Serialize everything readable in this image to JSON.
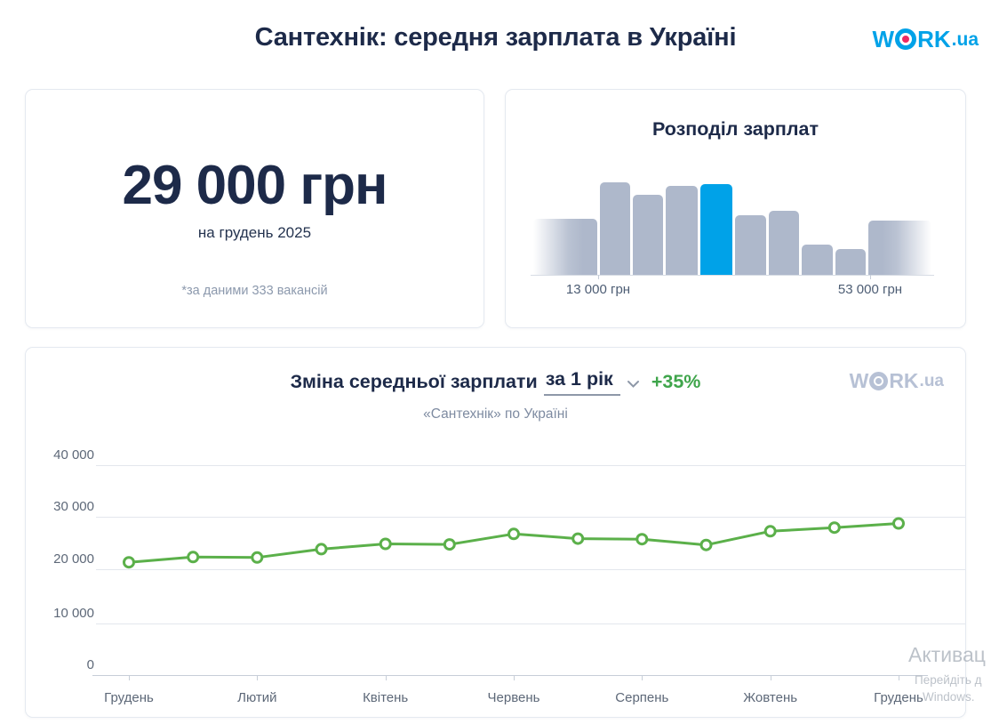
{
  "header": {
    "title": "Сантехнік: середня зарплата в Україні",
    "logo": {
      "pre_o": "W",
      "post_o": "RK",
      "suffix": ".ua"
    }
  },
  "salary_card": {
    "amount": "29 000 грн",
    "period": "на грудень 2025",
    "note": "*за даними 333 вакансій"
  },
  "distribution_card": {
    "title": "Розподіл зарплат",
    "min_label": "13 000 грн",
    "max_label": "53 000 грн"
  },
  "trend_card": {
    "title": "Зміна середньої зарплати",
    "period_selector": "за 1 рік",
    "growth": "+35%",
    "subtitle": "«Сантехнік» по Україні",
    "logo": {
      "pre_o": "W",
      "post_o": "RK",
      "suffix": ".ua"
    }
  },
  "watermark": {
    "line1": "Активац",
    "line2": "Перейдіть д",
    "line3": "Windows."
  },
  "colors": {
    "accent_blue": "#00a2e8",
    "logo_dot_pink": "#ee2a62",
    "bar_gray": "#aeb8cb",
    "line_green": "#5bb04a",
    "growth_green": "#3fa54b",
    "navy": "#1d2a49"
  },
  "chart_data": [
    {
      "type": "bar",
      "title": "Розподіл зарплат",
      "x_labels": [
        "13 000 грн",
        "53 000 грн"
      ],
      "bars_height_pct": [
        61,
        100,
        87,
        96,
        98,
        64,
        69,
        33,
        28,
        59
      ],
      "highlighted_bar_index": 4,
      "fade_left_index": 0,
      "fade_right_index": 9,
      "legend": "off",
      "grid": "off"
    },
    {
      "type": "line",
      "title": "Зміна середньої зарплати за 1 рік",
      "growth_label": "+35%",
      "subtitle": "«Сантехнік» по Україні",
      "x_tick_labels": [
        "Грудень",
        "Лютий",
        "Квітень",
        "Червень",
        "Серпень",
        "Жовтень",
        "Грудень"
      ],
      "y_tick_labels": [
        "40 000",
        "30 000",
        "20 000",
        "10 000",
        "0"
      ],
      "ylim": [
        0,
        40000
      ],
      "values": [
        21500,
        22500,
        22400,
        24000,
        25000,
        24900,
        26900,
        26000,
        25900,
        24800,
        27400,
        28100,
        28900
      ],
      "grid": "on",
      "legend": "off"
    }
  ]
}
